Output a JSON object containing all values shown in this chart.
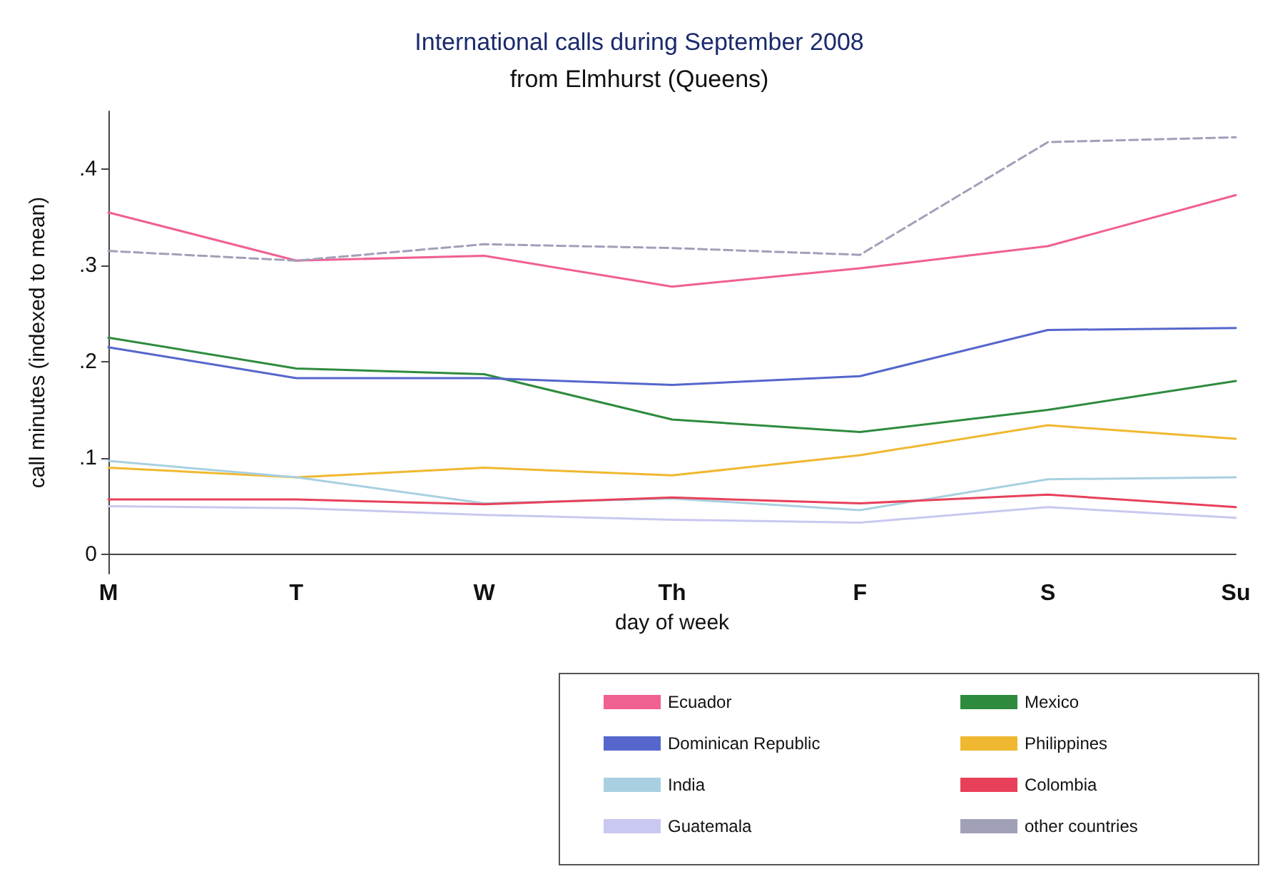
{
  "chart_data": {
    "type": "line",
    "title": "International calls during September 2008",
    "subtitle": "from Elmhurst (Queens)",
    "xlabel": "day of week",
    "ylabel": "call minutes (indexed to mean)",
    "categories": [
      "M",
      "T",
      "W",
      "Th",
      "F",
      "S",
      "Su"
    ],
    "ylim": [
      -0.02,
      0.46
    ],
    "yticks": [
      {
        "value": 0,
        "label": "0"
      },
      {
        "value": 0.1,
        "label": ".1"
      },
      {
        "value": 0.2,
        "label": ".2"
      },
      {
        "value": 0.3,
        "label": ".3"
      },
      {
        "value": 0.4,
        "label": ".4"
      }
    ],
    "grid": false,
    "legend": "bottom right",
    "marker": "none",
    "line_style": "solid",
    "series": [
      {
        "name": "Ecuador",
        "color": "#f06090",
        "values": [
          0.355,
          0.305,
          0.31,
          0.278,
          0.297,
          0.32,
          0.373
        ]
      },
      {
        "name": "Mexico",
        "color": "#2e8b3e",
        "values": [
          0.225,
          0.193,
          0.187,
          0.14,
          0.127,
          0.15,
          0.18
        ]
      },
      {
        "name": "Dominican Republic",
        "color": "#5566cc",
        "values": [
          0.215,
          0.183,
          0.183,
          0.176,
          0.185,
          0.233,
          0.235
        ]
      },
      {
        "name": "Philippines",
        "color": "#f0b830",
        "values": [
          0.09,
          0.08,
          0.09,
          0.082,
          0.103,
          0.134,
          0.12
        ]
      },
      {
        "name": "India",
        "color": "#a8d0e0",
        "values": [
          0.097,
          0.08,
          0.053,
          0.058,
          0.046,
          0.078,
          0.08
        ]
      },
      {
        "name": "Colombia",
        "color": "#e8405a",
        "values": [
          0.057,
          0.057,
          0.052,
          0.059,
          0.053,
          0.062,
          0.049
        ]
      },
      {
        "name": "Guatemala",
        "color": "#c8c8f0",
        "values": [
          0.05,
          0.048,
          0.041,
          0.036,
          0.033,
          0.049,
          0.038
        ]
      },
      {
        "name": "other countries",
        "color": "#a0a0b8",
        "line_style": "dashed",
        "values": [
          0.315,
          0.305,
          0.322,
          0.318,
          0.311,
          0.428,
          0.433
        ]
      }
    ]
  }
}
